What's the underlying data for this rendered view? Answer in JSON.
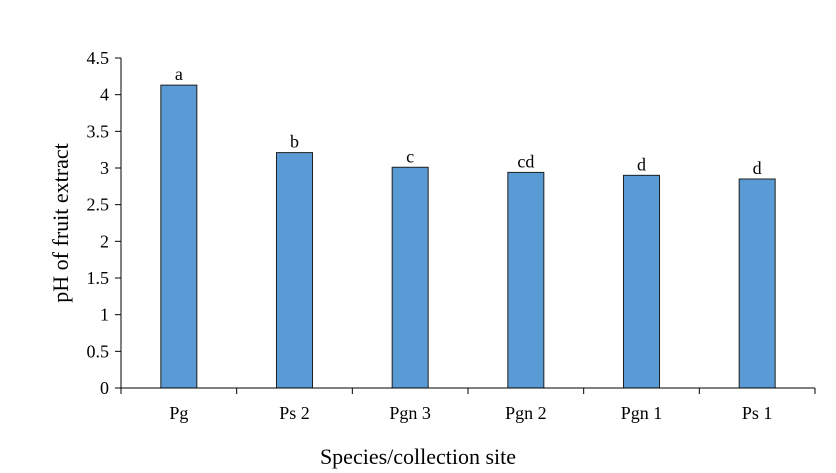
{
  "chart_data": {
    "type": "bar",
    "title": "",
    "xlabel": "Species/collection site",
    "ylabel": "pH of fruit extract",
    "categories": [
      "Pg",
      "Ps 2",
      "Pgn 3",
      "Pgn 2",
      "Pgn 1",
      "Ps 1"
    ],
    "values": [
      4.13,
      3.21,
      3.01,
      2.94,
      2.9,
      2.85
    ],
    "letters": [
      "a",
      "b",
      "c",
      "cd",
      "d",
      "d"
    ],
    "ylim": [
      0,
      4.5
    ],
    "yticks": [
      0,
      0.5,
      1,
      1.5,
      2,
      2.5,
      3,
      3.5,
      4,
      4.5
    ],
    "ytick_labels": [
      "0",
      "0.5",
      "1",
      "1.5",
      "2",
      "2.5",
      "3",
      "3.5",
      "4",
      "4.5"
    ],
    "grid": false,
    "bar_color": "#5b9bd5",
    "bar_edge_color": "#1f1f1f"
  }
}
